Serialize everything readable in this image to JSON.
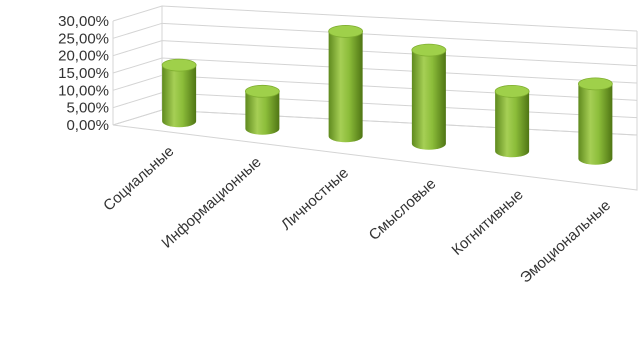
{
  "chart_data": {
    "type": "bar",
    "style": "3d-cylinder",
    "categories": [
      "Социальные",
      "Информационные",
      "Личностные",
      "Смысловые",
      "Когнитивные",
      "Эмоциональные"
    ],
    "series": [
      {
        "values": [
          15,
          10,
          28,
          25,
          16,
          20
        ]
      }
    ],
    "yticks": [
      "0,00%",
      "5,00%",
      "10,00%",
      "15,00%",
      "20,00%",
      "25,00%",
      "30,00%"
    ],
    "ylim": [
      0,
      30
    ],
    "grid": true,
    "legend": "none",
    "bar_color": "#8db63c"
  }
}
